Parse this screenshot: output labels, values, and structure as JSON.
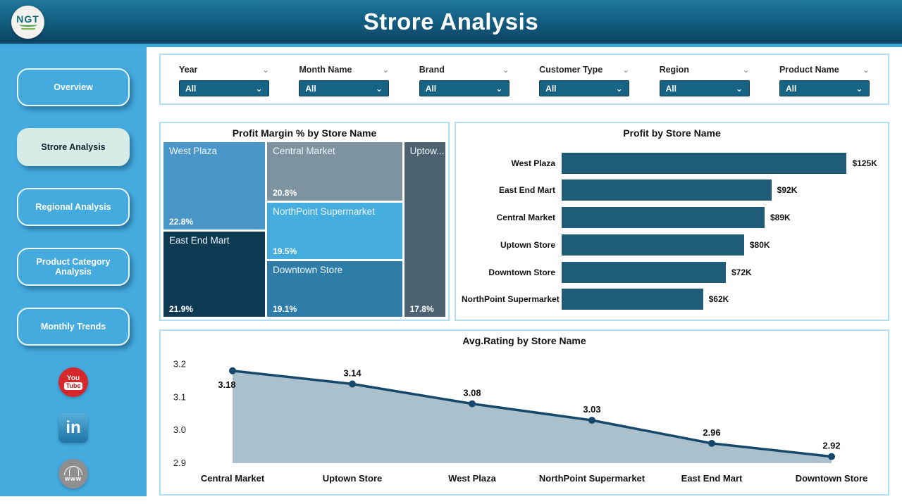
{
  "header": {
    "title": "Strore Analysis",
    "logo_text": "NGT"
  },
  "sidebar": {
    "items": [
      {
        "label": "Overview",
        "active": false
      },
      {
        "label": "Strore Analysis",
        "active": true
      },
      {
        "label": "Regional Analysis",
        "active": false
      },
      {
        "label": "Product Category Analysis",
        "active": false
      },
      {
        "label": "Monthly Trends",
        "active": false
      }
    ],
    "social": [
      {
        "name": "youtube",
        "line1": "You",
        "line2": "Tube"
      },
      {
        "name": "linkedin",
        "text": "in"
      },
      {
        "name": "website",
        "text": "www"
      }
    ]
  },
  "filters": [
    {
      "label": "Year",
      "value": "All"
    },
    {
      "label": "Month Name",
      "value": "All"
    },
    {
      "label": "Brand",
      "value": "All"
    },
    {
      "label": "Customer Type",
      "value": "All"
    },
    {
      "label": "Region",
      "value": "All"
    },
    {
      "label": "Product Name",
      "value": "All"
    }
  ],
  "colors": {
    "sidebar": "#45abdf",
    "accent_strip": "#3ca7da",
    "panel_border": "#b0dff2",
    "slicer_box": "#176383",
    "bar": "#1f5c77",
    "line": "#16486b",
    "area_fill": "#a7bdca",
    "active_nav_bg": "#d5ece7"
  },
  "chart_data": [
    {
      "type": "treemap",
      "title": "Profit Margin % by Store Name",
      "items": [
        {
          "label": "West Plaza",
          "display_label": "West Plaza",
          "value": 22.8,
          "value_label": "22.8%",
          "color": "#4a96c8"
        },
        {
          "label": "East End Mart",
          "display_label": "East End Mart",
          "value": 21.9,
          "value_label": "21.9%",
          "color": "#0e3a54"
        },
        {
          "label": "Central Market",
          "display_label": "Central Market",
          "value": 20.8,
          "value_label": "20.8%",
          "color": "#7e93a0"
        },
        {
          "label": "NorthPoint Supermarket",
          "display_label": "NorthPoint Supermarket",
          "value": 19.5,
          "value_label": "19.5%",
          "color": "#45aede"
        },
        {
          "label": "Downtown Store",
          "display_label": "Downtown Store",
          "value": 19.1,
          "value_label": "19.1%",
          "color": "#2e7da8"
        },
        {
          "label": "Uptown Store",
          "display_label": "Uptow...",
          "value": 17.8,
          "value_label": "17.8%",
          "color": "#4d6270"
        }
      ],
      "layout_columns": [
        [
          0,
          1
        ],
        [
          2,
          3,
          4
        ],
        [
          5
        ]
      ]
    },
    {
      "type": "bar",
      "title": "Profit by Store Name",
      "orientation": "horizontal",
      "categories": [
        "West Plaza",
        "East End Mart",
        "Central Market",
        "Uptown Store",
        "Downtown Store",
        "NorthPoint Supermarket"
      ],
      "values": [
        125,
        92,
        89,
        80,
        72,
        62
      ],
      "value_labels": [
        "$125K",
        "$92K",
        "$89K",
        "$80K",
        "$72K",
        "$62K"
      ],
      "xlim": [
        0,
        140
      ],
      "bar_color": "#1f5c77"
    },
    {
      "type": "area",
      "title": "Avg.Rating by Store Name",
      "categories": [
        "Central Market",
        "Uptown Store",
        "West Plaza",
        "NorthPoint Supermarket",
        "East End Mart",
        "Downtown Store"
      ],
      "values": [
        3.18,
        3.14,
        3.08,
        3.03,
        2.96,
        2.92
      ],
      "value_labels": [
        "3.18",
        "3.14",
        "3.08",
        "3.03",
        "2.96",
        "2.92"
      ],
      "y_ticks": [
        "3.2",
        "3.1",
        "3.0",
        "2.9"
      ],
      "ylim": [
        2.9,
        3.22
      ],
      "grid": false,
      "legend": false,
      "line_color": "#16486b",
      "fill_color": "#a7bdca"
    }
  ]
}
